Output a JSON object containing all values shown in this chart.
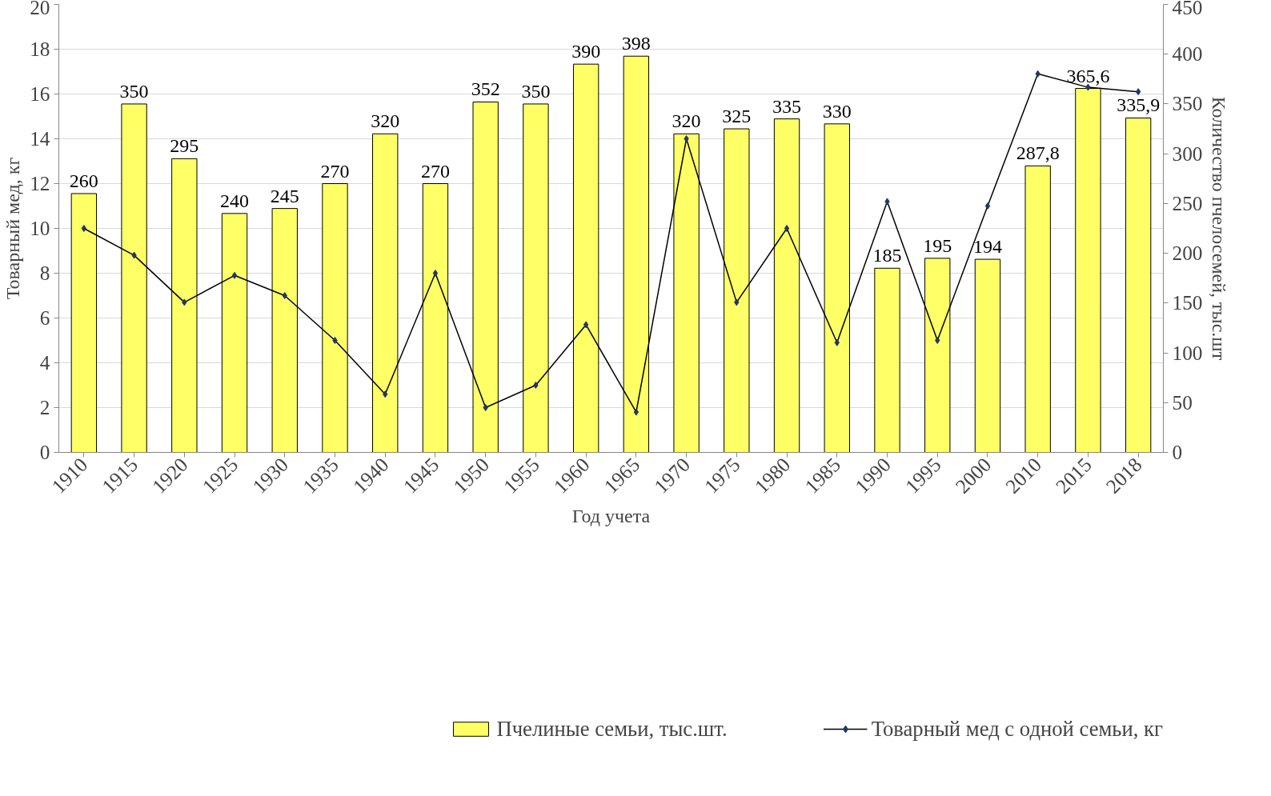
{
  "chart_data": {
    "type": "bar",
    "xlabel": "Год учета",
    "ylabel": "Товарный мед, кг",
    "y2label": "Количество пчелосемей, тыс.шт",
    "categories": [
      "1910",
      "1915",
      "1920",
      "1925",
      "1930",
      "1935",
      "1940",
      "1945",
      "1950",
      "1955",
      "1960",
      "1965",
      "1970",
      "1975",
      "1980",
      "1985",
      "1990",
      "1995",
      "2000",
      "2010",
      "2015",
      "2018"
    ],
    "series": [
      {
        "name": "Пчелиные семьи, тыс.шт.",
        "axis": "y2",
        "color": "#ffff66",
        "values": [
          260,
          350,
          295,
          240,
          245,
          270,
          320,
          270,
          352,
          350,
          390,
          398,
          320,
          325,
          335,
          330,
          185,
          195,
          194,
          287.8,
          365.6,
          335.9
        ],
        "value_labels": [
          "260",
          "350",
          "295",
          "240",
          "245",
          "270",
          "320",
          "270",
          "352",
          "350",
          "390",
          "398",
          "320",
          "325",
          "335",
          "330",
          "185",
          "195",
          "194",
          "287,8",
          "365,6",
          "335,9"
        ]
      },
      {
        "name": "Товарный мед с одной семьи, кг",
        "type": "line",
        "axis": "y",
        "color": "#1f3864",
        "marker": "diamond",
        "values": [
          10,
          8.8,
          6.7,
          7.9,
          7.0,
          5.0,
          2.6,
          8.0,
          2.0,
          3.0,
          5.7,
          1.8,
          14.0,
          6.7,
          10.0,
          4.9,
          11.2,
          5.0,
          11.0,
          16.9,
          16.3,
          16.1
        ]
      }
    ],
    "ylim": [
      0,
      20
    ],
    "yticks": [
      0,
      2,
      4,
      6,
      8,
      10,
      12,
      14,
      16,
      18,
      20
    ],
    "y2lim": [
      0,
      450
    ],
    "y2ticks": [
      0,
      50,
      100,
      150,
      200,
      250,
      300,
      350,
      400,
      450
    ],
    "grid": "y",
    "legend": "bottom"
  }
}
